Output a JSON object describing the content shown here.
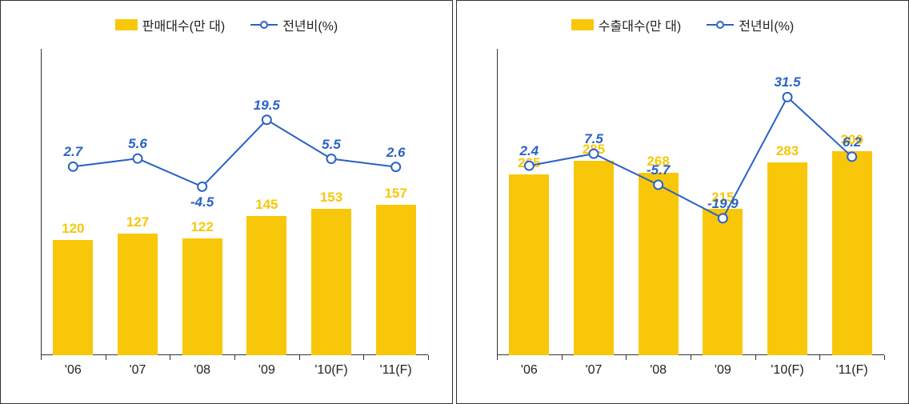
{
  "panels": [
    {
      "legend": {
        "bar_label": "판매대수(만 대)",
        "line_label": "전년비(%)"
      },
      "categories": [
        "'06",
        "'07",
        "'08",
        "'09",
        "'10(F)",
        "'11(F)"
      ],
      "bars": {
        "values": [
          120,
          127,
          122,
          145,
          153,
          157
        ],
        "color": "#f9c709",
        "label_color": "#f9c709",
        "y_max": 320,
        "width_frac": 0.62
      },
      "line": {
        "values": [
          2.7,
          5.6,
          -4.5,
          19.5,
          5.5,
          2.6
        ],
        "labels": [
          "2.7",
          "5.6",
          "-4.5",
          "19.5",
          "5.5",
          "2.6"
        ],
        "label_pos": [
          "above",
          "above",
          "below",
          "above",
          "above",
          "above"
        ],
        "color": "#2a62c4",
        "label_color": "#2a62c4",
        "marker_size": 11,
        "line_width": 2,
        "y_min": -65,
        "y_max": 45
      },
      "label_fontsize": 17,
      "axis_fontsize": 16,
      "background_color": "#ffffff",
      "axis_color": "#333333"
    },
    {
      "legend": {
        "bar_label": "수출대수(만 대)",
        "line_label": "전년비(%)"
      },
      "categories": [
        "'06",
        "'07",
        "'08",
        "'09",
        "'10(F)",
        "'11(F)"
      ],
      "bars": {
        "values": [
          265,
          285,
          268,
          215,
          283,
          300
        ],
        "color": "#f9c709",
        "label_color": "#f9c709",
        "y_max": 450,
        "width_frac": 0.62
      },
      "line": {
        "values": [
          2.4,
          7.5,
          -5.7,
          -19.9,
          31.5,
          6.2
        ],
        "labels": [
          "2.4",
          "7.5",
          "-5.7",
          "-19.9",
          "31.5",
          "6.2"
        ],
        "label_pos": [
          "above",
          "above",
          "above",
          "above",
          "above",
          "above"
        ],
        "color": "#2a62c4",
        "label_color": "#2a62c4",
        "marker_size": 11,
        "line_width": 2,
        "y_min": -78,
        "y_max": 52
      },
      "label_fontsize": 17,
      "axis_fontsize": 16,
      "background_color": "#ffffff",
      "axis_color": "#333333"
    }
  ]
}
